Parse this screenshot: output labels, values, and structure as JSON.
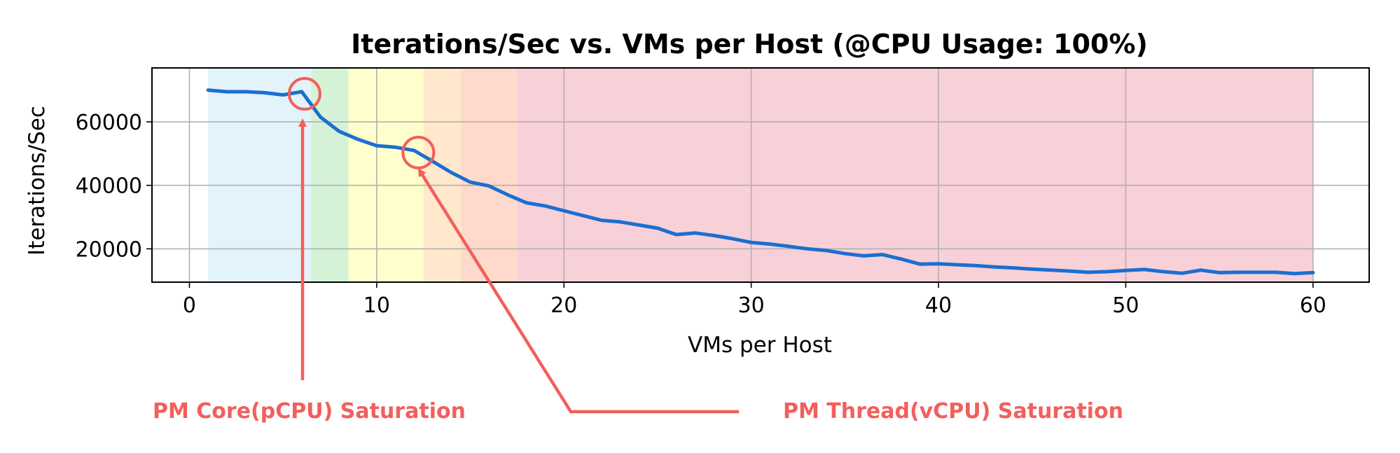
{
  "chart_data": {
    "type": "line",
    "title": "Iterations/Sec vs. VMs per Host (@CPU Usage: 100%)",
    "xlabel": "VMs per Host",
    "ylabel": "Iterations/Sec",
    "xlim": [
      -2,
      63
    ],
    "ylim": [
      9500,
      77000
    ],
    "xticks": [
      0,
      10,
      20,
      30,
      40,
      50,
      60
    ],
    "xtick_labels": [
      "0",
      "10",
      "20",
      "30",
      "40",
      "50",
      "60"
    ],
    "yticks": [
      20000,
      40000,
      60000
    ],
    "ytick_labels": [
      "20000",
      "40000",
      "60000"
    ],
    "grid": true,
    "line_color": "#1a6fd0",
    "bands": [
      {
        "x0": 1,
        "x1": 6.5,
        "color": "#e3f3fa"
      },
      {
        "x0": 6.5,
        "x1": 8.5,
        "color": "#d5f2d6"
      },
      {
        "x0": 8.5,
        "x1": 12.5,
        "color": "#ffffcc"
      },
      {
        "x0": 12.5,
        "x1": 14.5,
        "color": "#ffe8cc"
      },
      {
        "x0": 14.5,
        "x1": 17.5,
        "color": "#ffd9cc"
      },
      {
        "x0": 17.5,
        "x1": 60,
        "color": "#f8d0d8"
      }
    ],
    "x": [
      1,
      2,
      3,
      4,
      5,
      6,
      7,
      8,
      9,
      10,
      11,
      12,
      13,
      14,
      15,
      16,
      17,
      18,
      19,
      20,
      21,
      22,
      23,
      24,
      25,
      26,
      27,
      28,
      29,
      30,
      31,
      32,
      33,
      34,
      35,
      36,
      37,
      38,
      39,
      40,
      41,
      42,
      43,
      44,
      45,
      46,
      47,
      48,
      49,
      50,
      51,
      52,
      53,
      54,
      55,
      56,
      57,
      58,
      59,
      60
    ],
    "y": [
      70000,
      69500,
      69500,
      69200,
      68500,
      69500,
      61500,
      57000,
      54500,
      52500,
      52000,
      51000,
      47500,
      44000,
      41000,
      39800,
      37000,
      34500,
      33500,
      32000,
      30500,
      29000,
      28500,
      27500,
      26500,
      24500,
      25000,
      24200,
      23200,
      22000,
      21500,
      20800,
      20000,
      19500,
      18500,
      17800,
      18200,
      16800,
      15200,
      15300,
      15000,
      14700,
      14300,
      14000,
      13600,
      13300,
      13000,
      12600,
      12800,
      13200,
      13500,
      12800,
      12300,
      13300,
      12500,
      12600,
      12600,
      12600,
      12200,
      12500
    ],
    "annotations": [
      {
        "text": "PM Core(pCPU) Saturation",
        "target_x": 6,
        "target_y": 69500
      },
      {
        "text": "PM Thread(vCPU) Saturation",
        "target_x": 12,
        "target_y": 51000
      }
    ],
    "annotation_color": "#f25f5c"
  }
}
